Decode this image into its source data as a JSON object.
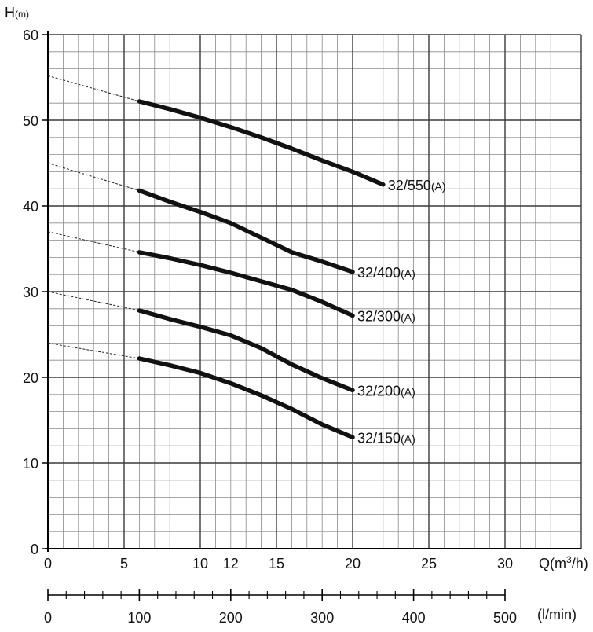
{
  "chart_data": {
    "type": "line",
    "title": "",
    "ylabel": {
      "main": "H",
      "unit": "(m)"
    },
    "xlabel_m3h": {
      "main": "Q(m",
      "sup": "3",
      "end": "/h)"
    },
    "xlabel_lmin": "(l/min)",
    "xlim": [
      0,
      35
    ],
    "ylim": [
      0,
      60
    ],
    "y_ticks": [
      "0",
      "10",
      "20",
      "30",
      "40",
      "50",
      "60"
    ],
    "x_ticks_m3h": [
      "0",
      "5",
      "10",
      "12",
      "15",
      "20",
      "25",
      "30"
    ],
    "x_ticks_lmin": [
      "0",
      "100",
      "200",
      "300",
      "400",
      "500"
    ],
    "grid": true,
    "series": [
      {
        "name": "32/550",
        "suffix": "(A)",
        "shutoff_head": 55.2,
        "x": [
          6,
          8,
          10,
          12,
          14,
          16,
          18,
          20,
          22
        ],
        "y": [
          52.2,
          51.3,
          50.3,
          49.2,
          48.0,
          46.7,
          45.3,
          44.0,
          42.5
        ]
      },
      {
        "name": "32/400",
        "suffix": "(A)",
        "shutoff_head": 45.0,
        "x": [
          6,
          8,
          10,
          12,
          14,
          16,
          18,
          20
        ],
        "y": [
          41.8,
          40.5,
          39.3,
          38.0,
          36.3,
          34.6,
          33.5,
          32.3
        ]
      },
      {
        "name": "32/300",
        "suffix": "(A)",
        "shutoff_head": 37.0,
        "x": [
          6,
          8,
          10,
          12,
          14,
          16,
          18,
          20
        ],
        "y": [
          34.6,
          33.9,
          33.1,
          32.2,
          31.2,
          30.2,
          28.8,
          27.2
        ]
      },
      {
        "name": "32/200",
        "suffix": "(A)",
        "shutoff_head": 30.0,
        "x": [
          6,
          8,
          10,
          12,
          14,
          16,
          18,
          20
        ],
        "y": [
          27.8,
          26.8,
          25.9,
          24.9,
          23.4,
          21.5,
          19.9,
          18.5
        ]
      },
      {
        "name": "32/150",
        "suffix": "(A)",
        "shutoff_head": 24.0,
        "x": [
          6,
          8,
          10,
          12,
          14,
          16,
          18,
          20
        ],
        "y": [
          22.2,
          21.4,
          20.5,
          19.3,
          17.9,
          16.3,
          14.5,
          13.0
        ]
      }
    ]
  }
}
